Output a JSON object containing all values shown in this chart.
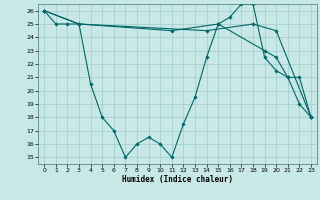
{
  "xlabel": "Humidex (Indice chaleur)",
  "bg_color": "#c8e8e8",
  "line_color": "#006666",
  "grid_color": "#a0cccc",
  "xlim": [
    -0.5,
    23.5
  ],
  "ylim": [
    14.5,
    26.5
  ],
  "xticks": [
    0,
    1,
    2,
    3,
    4,
    5,
    6,
    7,
    8,
    9,
    10,
    11,
    12,
    13,
    14,
    15,
    16,
    17,
    18,
    19,
    20,
    21,
    22,
    23
  ],
  "yticks": [
    15,
    16,
    17,
    18,
    19,
    20,
    21,
    22,
    23,
    24,
    25,
    26
  ],
  "series": [
    {
      "x": [
        0,
        1,
        2,
        3,
        4,
        5,
        6,
        7,
        8,
        9,
        10,
        11,
        12,
        13,
        14,
        15,
        16,
        17,
        18,
        19,
        20,
        21,
        22,
        23
      ],
      "y": [
        26,
        25,
        25,
        25,
        20.5,
        18,
        17,
        15,
        16,
        16.5,
        16,
        15,
        17.5,
        19.5,
        22.5,
        25,
        25.5,
        26.5,
        26.5,
        22.5,
        21.5,
        21,
        19,
        18
      ]
    },
    {
      "x": [
        0,
        3,
        14,
        18,
        20,
        23
      ],
      "y": [
        26,
        25,
        24.5,
        25,
        24.5,
        18
      ]
    },
    {
      "x": [
        0,
        3,
        11,
        15,
        19,
        20,
        21,
        22,
        23
      ],
      "y": [
        26,
        25,
        24.5,
        25,
        23,
        22.5,
        21,
        21,
        18
      ]
    }
  ]
}
